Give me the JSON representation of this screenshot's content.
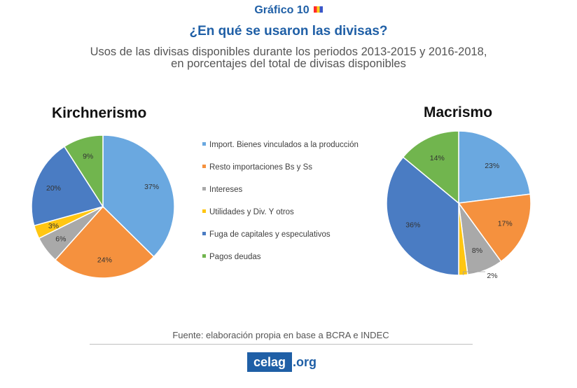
{
  "header": {
    "grafico": "Gráfico 10",
    "title": "¿En qué se usaron las divisas?",
    "subtitle_line1": "Usos de las divisas disponibles durante los periodos 2013-2015 y 2016-2018,",
    "subtitle_line2": "en porcentajes del total de divisas disponibles"
  },
  "chart_data": [
    {
      "type": "pie",
      "title": "Kirchnerismo",
      "categories": [
        "Import. Bienes vinculados a la producción",
        "Resto importaciones Bs y Ss",
        "Intereses",
        "Utilidades y Div. Y otros",
        "Fuga de capitales y especulativos",
        "Pagos deudas"
      ],
      "values": [
        37,
        24,
        6,
        3,
        20,
        9
      ],
      "labels": [
        "37%",
        "24%",
        "6%",
        "3%",
        "20%",
        "9%"
      ],
      "colors": [
        "#6aa8e0",
        "#f5913e",
        "#a9a9a9",
        "#ffc612",
        "#4a7cc3",
        "#71b54e"
      ],
      "legend": "center"
    },
    {
      "type": "pie",
      "title": "Macrismo",
      "categories": [
        "Import. Bienes vinculados a la producción",
        "Resto importaciones Bs y Ss",
        "Intereses",
        "Utilidades y Div. Y otros",
        "Fuga de capitales y especulativos",
        "Pagos deudas"
      ],
      "values": [
        23,
        17,
        8,
        2,
        36,
        14
      ],
      "labels": [
        "23%",
        "17%",
        "8%",
        "2%",
        "36%",
        "14%"
      ],
      "colors": [
        "#6aa8e0",
        "#f5913e",
        "#a9a9a9",
        "#ffc612",
        "#4a7cc3",
        "#71b54e"
      ],
      "legend": "center"
    }
  ],
  "legend": {
    "items": [
      {
        "label": "Import. Bienes vinculados a la producción",
        "color": "#6aa8e0"
      },
      {
        "label": "Resto importaciones Bs y Ss",
        "color": "#f5913e"
      },
      {
        "label": "Intereses",
        "color": "#a9a9a9"
      },
      {
        "label": "Utilidades y Div. Y otros",
        "color": "#ffc612"
      },
      {
        "label": "Fuga de capitales y especulativos",
        "color": "#4a7cc3"
      },
      {
        "label": "Pagos deudas",
        "color": "#71b54e"
      }
    ]
  },
  "footer": {
    "source": "Fuente: elaboración propia en base a BCRA e INDEC",
    "logo_main": "celag",
    "logo_tld": ".org",
    "logo_color": "#1f5fa6"
  }
}
